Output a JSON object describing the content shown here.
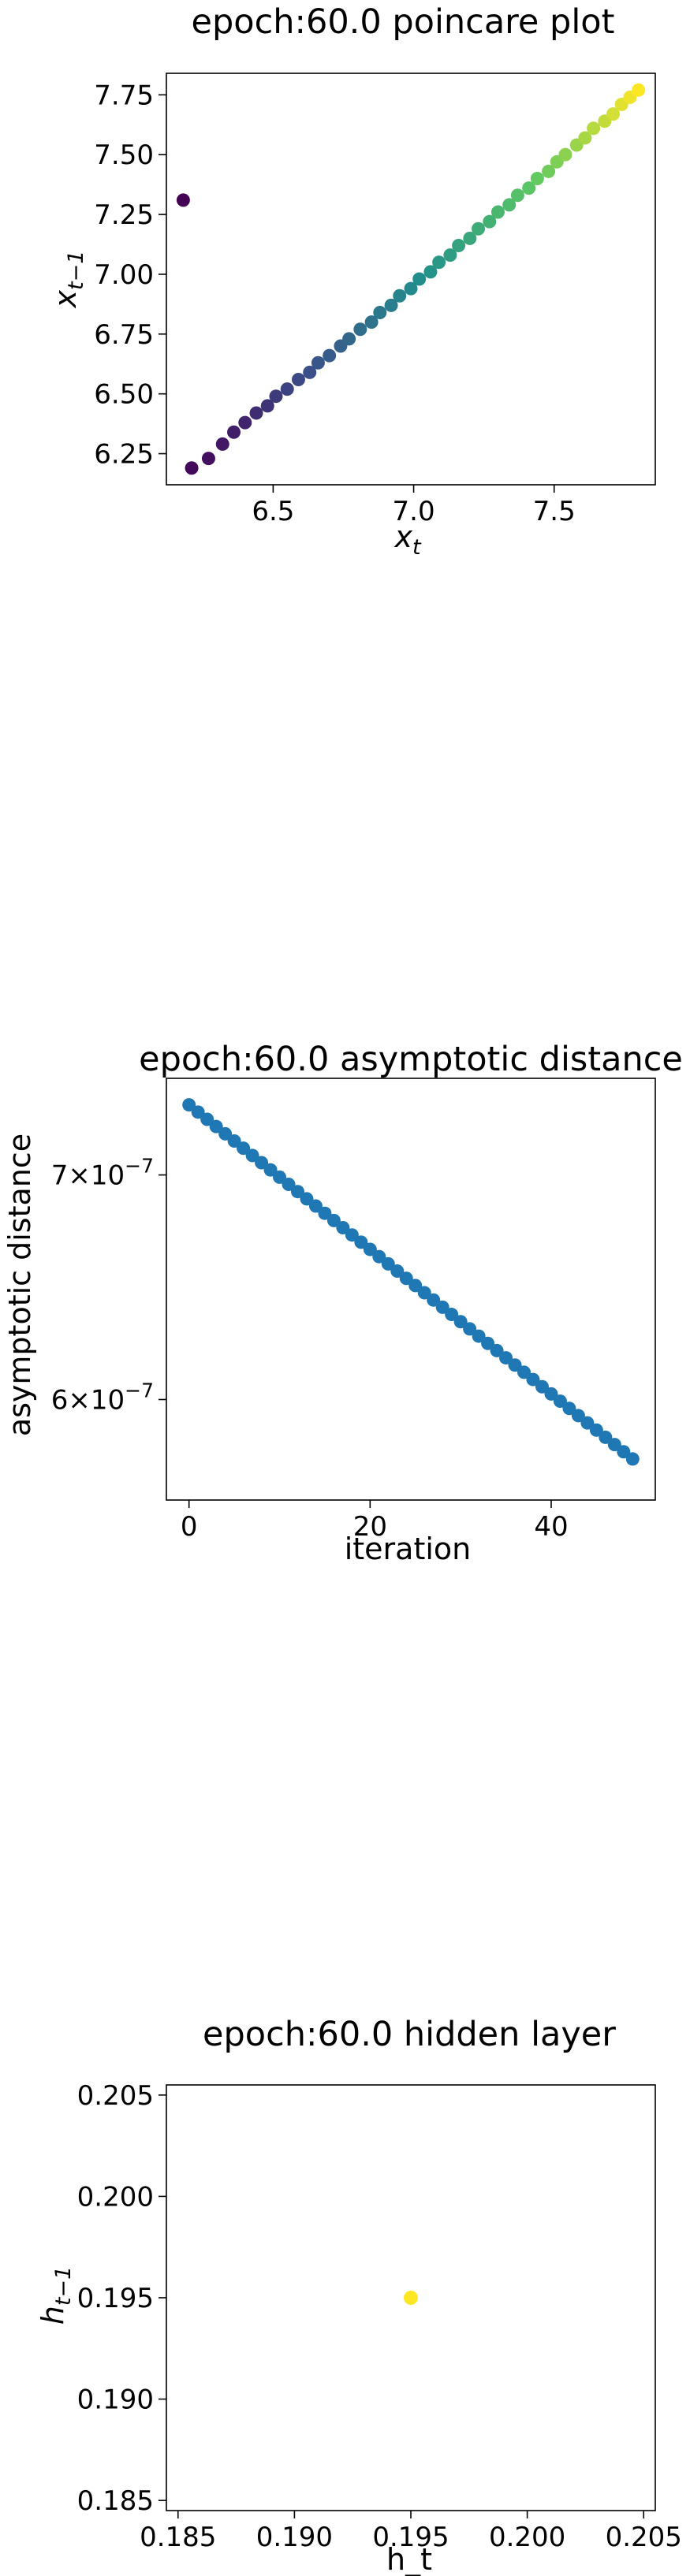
{
  "chart_data": [
    {
      "type": "scatter",
      "title": "epoch:60.0 poincare plot",
      "xlabel": "x_t",
      "ylabel": "x_{t-1}",
      "xlim": [
        6.12,
        7.86
      ],
      "ylim": [
        6.12,
        7.84
      ],
      "xticks": [
        6.5,
        7.0,
        7.5
      ],
      "xtick_labels": [
        "6.5",
        "7.0",
        "7.5"
      ],
      "yticks": [
        6.25,
        6.5,
        6.75,
        7.0,
        7.25,
        7.5,
        7.75
      ],
      "ytick_labels": [
        "6.25",
        "6.50",
        "6.75",
        "7.00",
        "7.25",
        "7.50",
        "7.75"
      ],
      "colormap": "viridis",
      "grid": false,
      "points": [
        [
          6.18,
          7.31
        ],
        [
          6.21,
          6.19
        ],
        [
          6.27,
          6.23
        ],
        [
          6.32,
          6.29
        ],
        [
          6.36,
          6.34
        ],
        [
          6.4,
          6.38
        ],
        [
          6.44,
          6.42
        ],
        [
          6.48,
          6.45
        ],
        [
          6.51,
          6.49
        ],
        [
          6.55,
          6.52
        ],
        [
          6.59,
          6.56
        ],
        [
          6.63,
          6.59
        ],
        [
          6.66,
          6.63
        ],
        [
          6.7,
          6.66
        ],
        [
          6.74,
          6.7
        ],
        [
          6.77,
          6.73
        ],
        [
          6.81,
          6.77
        ],
        [
          6.85,
          6.8
        ],
        [
          6.88,
          6.84
        ],
        [
          6.92,
          6.87
        ],
        [
          6.95,
          6.91
        ],
        [
          6.99,
          6.94
        ],
        [
          7.02,
          6.98
        ],
        [
          7.06,
          7.01
        ],
        [
          7.09,
          7.05
        ],
        [
          7.13,
          7.08
        ],
        [
          7.16,
          7.12
        ],
        [
          7.2,
          7.15
        ],
        [
          7.23,
          7.19
        ],
        [
          7.27,
          7.22
        ],
        [
          7.3,
          7.26
        ],
        [
          7.34,
          7.29
        ],
        [
          7.37,
          7.33
        ],
        [
          7.41,
          7.36
        ],
        [
          7.44,
          7.4
        ],
        [
          7.48,
          7.43
        ],
        [
          7.51,
          7.47
        ],
        [
          7.54,
          7.5
        ],
        [
          7.58,
          7.54
        ],
        [
          7.61,
          7.57
        ],
        [
          7.64,
          7.61
        ],
        [
          7.68,
          7.64
        ],
        [
          7.71,
          7.67
        ],
        [
          7.74,
          7.71
        ],
        [
          7.77,
          7.74
        ],
        [
          7.8,
          7.77
        ]
      ]
    },
    {
      "type": "scatter",
      "title": "epoch:60.0 asymptotic distance",
      "xlabel": "iteration",
      "ylabel": "asymptotic distance",
      "yscale": "log",
      "xlim": [
        -2.5,
        51.5
      ],
      "ylim": [
        5.6e-07,
        7.48e-07
      ],
      "xticks": [
        0,
        20,
        40
      ],
      "xtick_labels": [
        "0",
        "20",
        "40"
      ],
      "ytick_values": [
        7e-07,
        6e-07
      ],
      "ytick_mantissa": [
        "7",
        "6"
      ],
      "ytick_base": "10",
      "ytick_exponent": "−7",
      "color": "#1f77b4",
      "grid": false,
      "x_start": 0,
      "x_end": 49,
      "y_start": 7.345e-07,
      "y_end": 5.76e-07
    },
    {
      "type": "scatter",
      "title": "epoch:60.0 hidden layer",
      "xlabel": "h_t",
      "ylabel": "h_{t-1}",
      "xlim": [
        0.1845,
        0.2055
      ],
      "ylim": [
        0.1845,
        0.2055
      ],
      "xticks": [
        0.185,
        0.19,
        0.195,
        0.2,
        0.205
      ],
      "xtick_labels": [
        "0.185",
        "0.190",
        "0.195",
        "0.200",
        "0.205"
      ],
      "yticks": [
        0.185,
        0.19,
        0.195,
        0.2,
        0.205
      ],
      "ytick_labels": [
        "0.185",
        "0.190",
        "0.195",
        "0.200",
        "0.205"
      ],
      "grid": false,
      "points": [
        [
          0.195,
          0.195
        ]
      ],
      "color": "#fde725"
    }
  ]
}
